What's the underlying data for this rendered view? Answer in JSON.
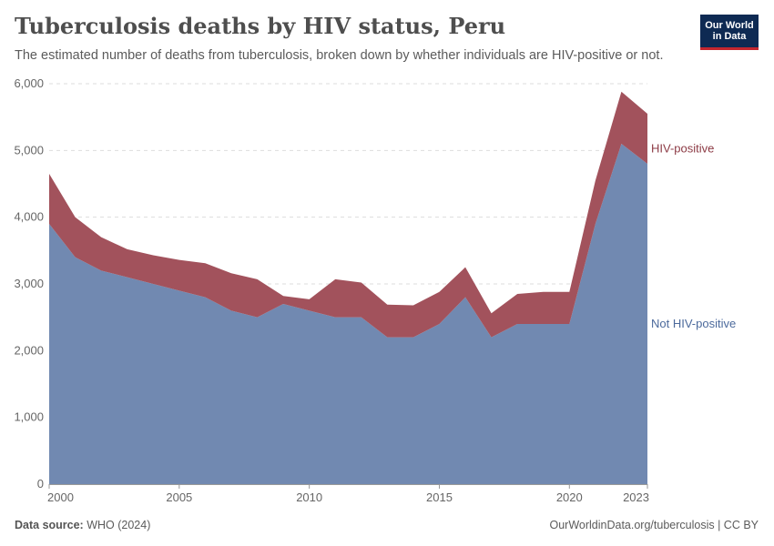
{
  "header": {
    "title": "Tuberculosis deaths by HIV status, Peru",
    "subtitle": "The estimated number of deaths from tuberculosis, broken down by whether individuals are HIV-positive or not."
  },
  "logo": {
    "line1": "Our World",
    "line2": "in Data"
  },
  "footer": {
    "source_label": "Data source:",
    "source_value": "WHO (2024)",
    "url": "OurWorldinData.org/tuberculosis | CC BY"
  },
  "chart_data": {
    "type": "area",
    "stacked": true,
    "x": [
      2000,
      2001,
      2002,
      2003,
      2004,
      2005,
      2006,
      2007,
      2008,
      2009,
      2010,
      2011,
      2012,
      2013,
      2014,
      2015,
      2016,
      2017,
      2018,
      2019,
      2020,
      2021,
      2022,
      2023
    ],
    "series": [
      {
        "name": "Not HIV-positive",
        "color": "#7189b1",
        "values": [
          3900,
          3400,
          3200,
          3100,
          3000,
          2900,
          2800,
          2600,
          2500,
          2700,
          2600,
          2500,
          2500,
          2200,
          2200,
          2400,
          2800,
          2200,
          2400,
          2400,
          2400,
          3900,
          5100,
          4800
        ]
      },
      {
        "name": "HIV-positive",
        "color": "#a2525c",
        "values": [
          750,
          600,
          500,
          420,
          430,
          460,
          510,
          560,
          570,
          120,
          170,
          570,
          520,
          490,
          480,
          480,
          450,
          360,
          450,
          480,
          480,
          650,
          780,
          750
        ]
      }
    ],
    "x_ticks": [
      "2000",
      "2005",
      "2010",
      "2015",
      "2020",
      "2023"
    ],
    "y_ticks": [
      "0",
      "1,000",
      "2,000",
      "3,000",
      "4,000",
      "5,000",
      "6,000"
    ],
    "xlim": [
      2000,
      2023
    ],
    "ylim": [
      0,
      6000
    ],
    "grid": "horizontal-dashed",
    "label_color_hiv": "#8c3a44",
    "label_color_not_hiv": "#4c6a9c"
  }
}
